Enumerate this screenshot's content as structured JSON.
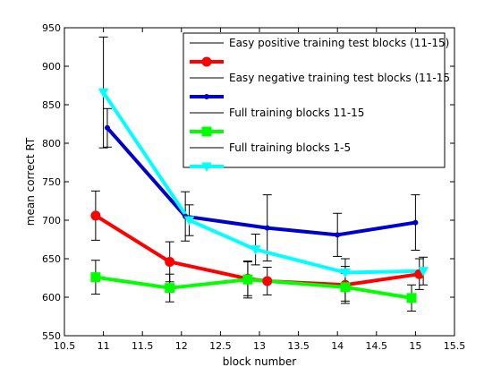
{
  "chart_data": {
    "type": "line",
    "title": "",
    "xlabel": "block number",
    "ylabel": "mean correct RT",
    "xlim": [
      10.5,
      15.5
    ],
    "ylim": [
      550,
      950
    ],
    "xticks": [
      10.5,
      11,
      11.5,
      12,
      12.5,
      13,
      13.5,
      14,
      14.5,
      15,
      15.5
    ],
    "xtick_labels": [
      "10.5",
      "11",
      "11.5",
      "12",
      "12.5",
      "13",
      "13.5",
      "14",
      "14.5",
      "15",
      "15.5"
    ],
    "yticks": [
      550,
      600,
      650,
      700,
      750,
      800,
      850,
      900,
      950
    ],
    "ytick_labels": [
      "550",
      "600",
      "650",
      "700",
      "750",
      "800",
      "850",
      "900",
      "950"
    ],
    "grid": false,
    "legend_position": "top-right",
    "legend_entries": [
      "Easy positive training test blocks (11-15)",
      "Easy negative training test blocks (11-15",
      "Full training blocks 11-15",
      "Full training blocks 1-5"
    ],
    "series": [
      {
        "name": "Easy positive training test blocks (11-15)",
        "color": "#ff0000",
        "marker": "circle",
        "x": [
          10.9,
          11.85,
          12.85,
          13.1,
          14.1,
          15.05
        ],
        "y": [
          706,
          646,
          624,
          621,
          616,
          630
        ],
        "err": [
          32,
          26,
          22,
          18,
          24,
          20
        ]
      },
      {
        "name": "Easy negative training test blocks (11-15",
        "color": "#0000cc",
        "marker": "dot",
        "x": [
          11.05,
          12.05,
          13.1,
          14.0,
          15.0
        ],
        "y": [
          820,
          705,
          690,
          681,
          697
        ],
        "err": [
          25,
          32,
          43,
          28,
          36
        ]
      },
      {
        "name": "Full training blocks 11-15",
        "color": "#00ff00",
        "marker": "square",
        "x": [
          10.9,
          11.85,
          12.85,
          14.1,
          14.95
        ],
        "y": [
          626,
          612,
          623,
          613,
          599
        ],
        "err": [
          22,
          18,
          24,
          18,
          17
        ]
      },
      {
        "name": "Full training blocks 1-5",
        "color": "#00ffff",
        "marker": "triangle-down",
        "x": [
          11.0,
          12.1,
          12.95,
          14.1,
          15.1
        ],
        "y": [
          866,
          700,
          662,
          632,
          634
        ],
        "err": [
          72,
          20,
          20,
          18,
          18
        ]
      }
    ]
  }
}
